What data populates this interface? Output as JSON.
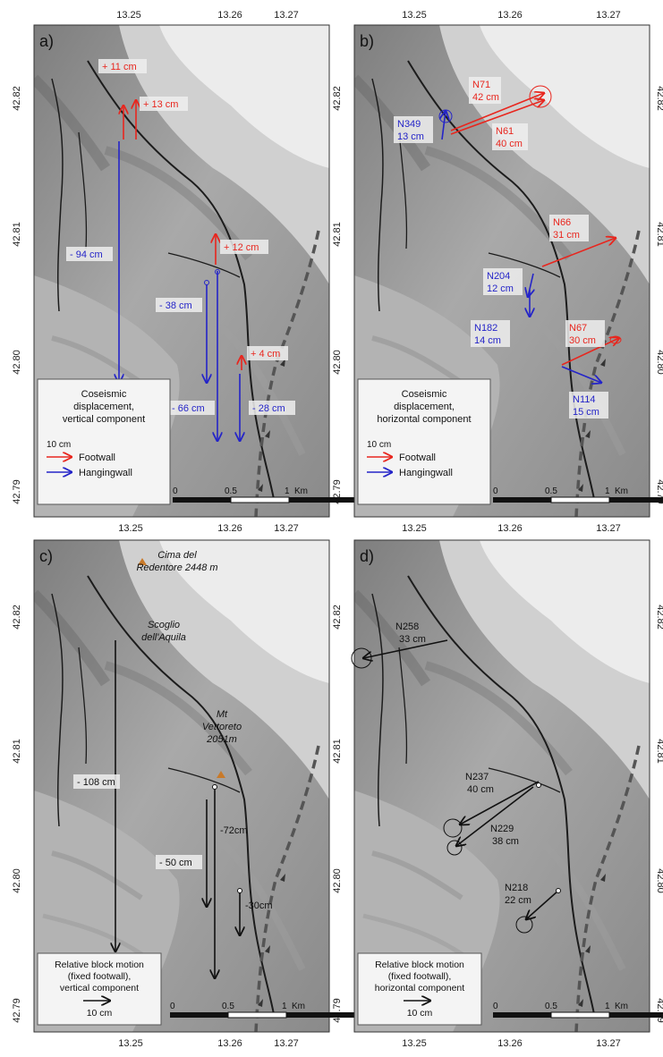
{
  "colors": {
    "footwall": "#e8261e",
    "hangingwall": "#2424c8",
    "black": "#111111",
    "label_bg": "#eeeeee"
  },
  "axis_ticks": {
    "top_x": [
      "13.25",
      "13.26",
      "13.27"
    ],
    "bottom_x": [
      "13.25",
      "13.26",
      "13.27"
    ],
    "left_y": [
      "42.82",
      "42.81",
      "42.80",
      "42.79"
    ],
    "right_y": [
      "42.82",
      "42.81",
      "42.80",
      "42.79"
    ]
  },
  "scale_bar": {
    "zero": "0",
    "half": "0.5",
    "one": "1",
    "unit": "Km"
  },
  "panels": {
    "a": {
      "letter": "a)",
      "legend_title_1": "Coseismic",
      "legend_title_2": "displacement,",
      "legend_title_3": "vertical component",
      "legend_scale": "10 cm",
      "legend_footwall": "Footwall",
      "legend_hangingwall": "Hangingwall",
      "labels": {
        "fw1": "+ 11 cm",
        "fw2": "+ 13 cm",
        "fw3": "+ 12 cm",
        "fw4": "+ 4 cm",
        "hw1": "- 94 cm",
        "hw2": "- 38 cm",
        "hw3": "- 66 cm",
        "hw4": "- 28 cm"
      }
    },
    "b": {
      "letter": "b)",
      "legend_title_1": "Coseismic",
      "legend_title_2": "displacement,",
      "legend_title_3": "horizontal component",
      "legend_scale": "10 cm",
      "legend_footwall": "Footwall",
      "legend_hangingwall": "Hangingwall",
      "labels": {
        "n71_dir": "N71",
        "n71_mag": "42 cm",
        "n61_dir": "N61",
        "n61_mag": "40 cm",
        "n349_dir": "N349",
        "n349_mag": "13 cm",
        "n66_dir": "N66",
        "n66_mag": "31 cm",
        "n204_dir": "N204",
        "n204_mag": "12 cm",
        "n182_dir": "N182",
        "n182_mag": "14 cm",
        "n67_dir": "N67",
        "n67_mag": "30 cm",
        "n114_dir": "N114",
        "n114_mag": "15 cm"
      }
    },
    "c": {
      "letter": "c)",
      "legend_title_1": "Relative block motion",
      "legend_title_2": "(fixed footwall),",
      "legend_title_3": "vertical component",
      "legend_scale": "10 cm",
      "places": {
        "cima_1": "Cima del",
        "cima_2": "Redentore 2448 m",
        "scoglio_1": "Scoglio",
        "scoglio_2": "dell'Aquila",
        "vettore_1": "Mt",
        "vettore_2": "Vettoreto",
        "vettore_3": "2051m"
      },
      "labels": {
        "m108": "- 108 cm",
        "m50": "- 50 cm",
        "m72": "-72cm",
        "m30": "-30cm"
      }
    },
    "d": {
      "letter": "d)",
      "legend_title_1": "Relative block motion",
      "legend_title_2": "(fixed footwall),",
      "legend_title_3": "horizontal component",
      "legend_scale": "10 cm",
      "labels": {
        "n258_dir": "N258",
        "n258_mag": "33 cm",
        "n237_dir": "N237",
        "n237_mag": "40 cm",
        "n229_dir": "N229",
        "n229_mag": "38 cm",
        "n218_dir": "N218",
        "n218_mag": "22 cm"
      }
    }
  }
}
